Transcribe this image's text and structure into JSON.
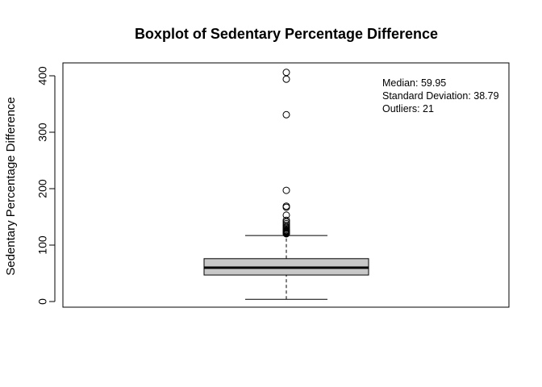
{
  "chart_data": {
    "type": "boxplot",
    "title": "Boxplot of Sedentary Percentage Difference",
    "xlabel": "",
    "ylabel": "Sedentary Percentage Difference",
    "ylim": [
      -10,
      425
    ],
    "yticks": [
      0,
      100,
      200,
      300,
      400
    ],
    "box": {
      "whisker_low": 4,
      "q1": 47,
      "median": 60,
      "q3": 76,
      "whisker_high": 117
    },
    "outliers": [
      406,
      394,
      331,
      197,
      169,
      167,
      153,
      144,
      141,
      138,
      135,
      132,
      130,
      128,
      126,
      125,
      124,
      123,
      122,
      121,
      120
    ],
    "annotations": [
      "Median: 59.95",
      "Standard Deviation: 38.79",
      "Outliers: 21"
    ],
    "colors": {
      "box_fill": "#c8c8c8",
      "line": "#000000"
    }
  }
}
